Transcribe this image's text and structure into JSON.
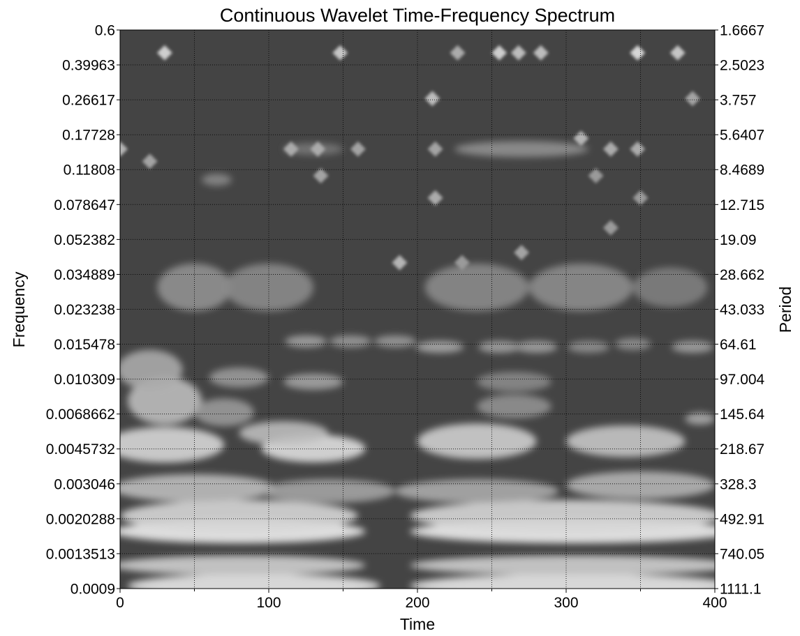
{
  "chart_data": {
    "type": "heatmap",
    "title": "Continuous Wavelet Time-Frequency Spectrum",
    "xlabel": "Time",
    "ylabel": "Frequency",
    "y2label": "Period",
    "xlim": [
      0,
      400
    ],
    "x_ticks": [
      "0",
      "100",
      "200",
      "300",
      "400"
    ],
    "x_minor_ticks": [
      50,
      150,
      250,
      350
    ],
    "y_scale": "log",
    "ylim": [
      0.0009,
      0.6
    ],
    "y_ticks": [
      {
        "value": 0.6,
        "label": "0.6"
      },
      {
        "value": 0.39963,
        "label": "0.39963"
      },
      {
        "value": 0.26617,
        "label": "0.26617"
      },
      {
        "value": 0.17728,
        "label": "0.17728"
      },
      {
        "value": 0.11808,
        "label": "0.11808"
      },
      {
        "value": 0.078647,
        "label": "0.078647"
      },
      {
        "value": 0.052382,
        "label": "0.052382"
      },
      {
        "value": 0.034889,
        "label": "0.034889"
      },
      {
        "value": 0.023238,
        "label": "0.023238"
      },
      {
        "value": 0.015478,
        "label": "0.015478"
      },
      {
        "value": 0.010309,
        "label": "0.010309"
      },
      {
        "value": 0.0068662,
        "label": "0.0068662"
      },
      {
        "value": 0.0045732,
        "label": "0.0045732"
      },
      {
        "value": 0.003046,
        "label": "0.003046"
      },
      {
        "value": 0.0020288,
        "label": "0.0020288"
      },
      {
        "value": 0.0013513,
        "label": "0.0013513"
      },
      {
        "value": 0.0009,
        "label": "0.0009"
      }
    ],
    "y2_ticks": [
      "1.6667",
      "2.5023",
      "3.757",
      "5.6407",
      "8.4689",
      "12.715",
      "19.09",
      "28.662",
      "43.033",
      "64.61",
      "97.004",
      "145.64",
      "218.67",
      "328.3",
      "492.91",
      "740.05",
      "1111.1"
    ],
    "grid": true,
    "colormap": "grayscale",
    "colors": {
      "background": "#444444",
      "high": "#f0f0f0",
      "grid": "#000000"
    },
    "intensity_scale": [
      0,
      1
    ],
    "blobs": [
      {
        "t": 90,
        "f": 0.00093,
        "w": 85,
        "lh": 0.06,
        "v": 0.95
      },
      {
        "t": 305,
        "f": 0.00093,
        "w": 110,
        "lh": 0.06,
        "v": 0.95
      },
      {
        "t": 80,
        "f": 0.00118,
        "w": 85,
        "lh": 0.05,
        "v": 0.8
      },
      {
        "t": 305,
        "f": 0.00118,
        "w": 110,
        "lh": 0.05,
        "v": 0.8
      },
      {
        "t": 80,
        "f": 0.00175,
        "w": 85,
        "lh": 0.06,
        "v": 0.98
      },
      {
        "t": 305,
        "f": 0.00175,
        "w": 110,
        "lh": 0.06,
        "v": 0.98
      },
      {
        "t": 80,
        "f": 0.0021,
        "w": 80,
        "lh": 0.08,
        "v": 0.85
      },
      {
        "t": 300,
        "f": 0.0021,
        "w": 105,
        "lh": 0.08,
        "v": 0.85
      },
      {
        "t": 50,
        "f": 0.0029,
        "w": 55,
        "lh": 0.07,
        "v": 0.7
      },
      {
        "t": 140,
        "f": 0.0028,
        "w": 45,
        "lh": 0.06,
        "v": 0.55
      },
      {
        "t": 240,
        "f": 0.0028,
        "w": 55,
        "lh": 0.06,
        "v": 0.6
      },
      {
        "t": 350,
        "f": 0.003,
        "w": 50,
        "lh": 0.07,
        "v": 0.65
      },
      {
        "t": 30,
        "f": 0.0048,
        "w": 40,
        "lh": 0.09,
        "v": 0.85
      },
      {
        "t": 130,
        "f": 0.0046,
        "w": 35,
        "lh": 0.07,
        "v": 0.9
      },
      {
        "t": 110,
        "f": 0.0055,
        "w": 30,
        "lh": 0.06,
        "v": 0.7
      },
      {
        "t": 240,
        "f": 0.005,
        "w": 40,
        "lh": 0.09,
        "v": 0.8
      },
      {
        "t": 340,
        "f": 0.005,
        "w": 40,
        "lh": 0.08,
        "v": 0.75
      },
      {
        "t": 30,
        "f": 0.008,
        "w": 25,
        "lh": 0.12,
        "v": 0.7
      },
      {
        "t": 70,
        "f": 0.007,
        "w": 20,
        "lh": 0.07,
        "v": 0.5
      },
      {
        "t": 265,
        "f": 0.0075,
        "w": 25,
        "lh": 0.06,
        "v": 0.45
      },
      {
        "t": 390,
        "f": 0.0065,
        "w": 10,
        "lh": 0.03,
        "v": 0.6
      },
      {
        "t": 20,
        "f": 0.0115,
        "w": 22,
        "lh": 0.1,
        "v": 0.6
      },
      {
        "t": 80,
        "f": 0.0105,
        "w": 20,
        "lh": 0.05,
        "v": 0.5
      },
      {
        "t": 130,
        "f": 0.01,
        "w": 20,
        "lh": 0.04,
        "v": 0.55
      },
      {
        "t": 265,
        "f": 0.01,
        "w": 25,
        "lh": 0.05,
        "v": 0.4
      },
      {
        "t": 125,
        "f": 0.016,
        "w": 14,
        "lh": 0.03,
        "v": 0.55
      },
      {
        "t": 155,
        "f": 0.016,
        "w": 14,
        "lh": 0.03,
        "v": 0.5
      },
      {
        "t": 185,
        "f": 0.016,
        "w": 14,
        "lh": 0.03,
        "v": 0.5
      },
      {
        "t": 215,
        "f": 0.015,
        "w": 16,
        "lh": 0.03,
        "v": 0.6
      },
      {
        "t": 255,
        "f": 0.015,
        "w": 14,
        "lh": 0.03,
        "v": 0.55
      },
      {
        "t": 280,
        "f": 0.015,
        "w": 14,
        "lh": 0.03,
        "v": 0.55
      },
      {
        "t": 315,
        "f": 0.015,
        "w": 14,
        "lh": 0.03,
        "v": 0.45
      },
      {
        "t": 345,
        "f": 0.0155,
        "w": 12,
        "lh": 0.03,
        "v": 0.45
      },
      {
        "t": 385,
        "f": 0.015,
        "w": 14,
        "lh": 0.03,
        "v": 0.55
      },
      {
        "t": 50,
        "f": 0.03,
        "w": 25,
        "lh": 0.12,
        "v": 0.45
      },
      {
        "t": 100,
        "f": 0.03,
        "w": 30,
        "lh": 0.12,
        "v": 0.4
      },
      {
        "t": 240,
        "f": 0.03,
        "w": 35,
        "lh": 0.12,
        "v": 0.4
      },
      {
        "t": 310,
        "f": 0.03,
        "w": 35,
        "lh": 0.12,
        "v": 0.42
      },
      {
        "t": 370,
        "f": 0.03,
        "w": 25,
        "lh": 0.1,
        "v": 0.35
      },
      {
        "t": 270,
        "f": 0.15,
        "w": 45,
        "lh": 0.04,
        "v": 0.45
      },
      {
        "t": 65,
        "f": 0.105,
        "w": 10,
        "lh": 0.03,
        "v": 0.4
      },
      {
        "t": 130,
        "f": 0.15,
        "w": 20,
        "lh": 0.03,
        "v": 0.3
      }
    ],
    "sparkles": [
      {
        "t": 30,
        "f": 0.46,
        "v": 0.6
      },
      {
        "t": 148,
        "f": 0.46,
        "v": 0.55
      },
      {
        "t": 255,
        "f": 0.46,
        "v": 0.6
      },
      {
        "t": 268,
        "f": 0.46,
        "v": 0.5
      },
      {
        "t": 283,
        "f": 0.46,
        "v": 0.5
      },
      {
        "t": 348,
        "f": 0.46,
        "v": 0.65
      },
      {
        "t": 375,
        "f": 0.46,
        "v": 0.55
      },
      {
        "t": 227,
        "f": 0.46,
        "v": 0.4
      },
      {
        "t": 210,
        "f": 0.27,
        "v": 0.5
      },
      {
        "t": 385,
        "f": 0.27,
        "v": 0.35
      },
      {
        "t": 0,
        "f": 0.15,
        "v": 0.45
      },
      {
        "t": 20,
        "f": 0.13,
        "v": 0.35
      },
      {
        "t": 115,
        "f": 0.15,
        "v": 0.4
      },
      {
        "t": 133,
        "f": 0.15,
        "v": 0.4
      },
      {
        "t": 160,
        "f": 0.15,
        "v": 0.35
      },
      {
        "t": 212,
        "f": 0.15,
        "v": 0.35
      },
      {
        "t": 330,
        "f": 0.15,
        "v": 0.4
      },
      {
        "t": 348,
        "f": 0.15,
        "v": 0.4
      },
      {
        "t": 310,
        "f": 0.17,
        "v": 0.45
      },
      {
        "t": 135,
        "f": 0.11,
        "v": 0.35
      },
      {
        "t": 320,
        "f": 0.11,
        "v": 0.3
      },
      {
        "t": 212,
        "f": 0.085,
        "v": 0.4
      },
      {
        "t": 350,
        "f": 0.085,
        "v": 0.3
      },
      {
        "t": 188,
        "f": 0.04,
        "v": 0.45
      },
      {
        "t": 230,
        "f": 0.04,
        "v": 0.3
      },
      {
        "t": 270,
        "f": 0.045,
        "v": 0.35
      },
      {
        "t": 330,
        "f": 0.06,
        "v": 0.3
      }
    ]
  }
}
